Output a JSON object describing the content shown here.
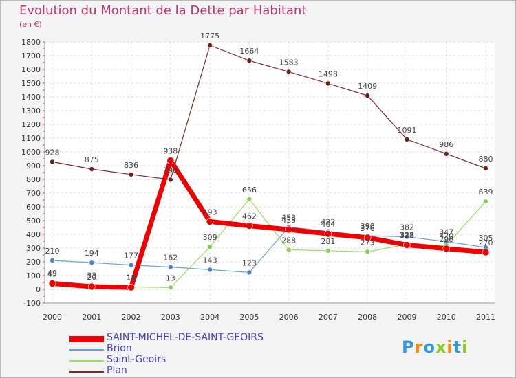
{
  "title": "Evolution du Montant de la Dette par Habitant",
  "unit": "(en €)",
  "logo": "Proxiti",
  "chart_data": {
    "type": "line",
    "title": "Evolution du Montant de la Dette par Habitant",
    "ylabel": "(en €)",
    "xlabel": "",
    "ylim": [
      -100,
      1800
    ],
    "yticks": [
      -100,
      0,
      100,
      200,
      300,
      400,
      500,
      600,
      700,
      800,
      900,
      1000,
      1100,
      1200,
      1300,
      1400,
      1500,
      1600,
      1700,
      1800
    ],
    "x": [
      "2000",
      "2001",
      "2002",
      "2003",
      "2004",
      "2005",
      "2006",
      "2007",
      "2008",
      "2009",
      "2010",
      "2011"
    ],
    "grid": true,
    "legend_position": "bottom-left",
    "series": [
      {
        "name": "Plan",
        "color": "#7a2a2a",
        "marker": "#6b1f1f",
        "width": 1.2,
        "values": [
          928,
          875,
          836,
          798,
          1775,
          1664,
          1583,
          1498,
          1409,
          1091,
          986,
          880
        ],
        "labels": [
          "928",
          "875",
          "836",
          "798",
          "1775",
          "1664",
          "1583",
          "1498",
          "1409",
          "1091",
          "986",
          "880"
        ]
      },
      {
        "name": "Brion",
        "color": "#6f9fcf",
        "marker": "#4f83c8",
        "width": 1.2,
        "values": [
          210,
          194,
          177,
          162,
          143,
          123,
          453,
          422,
          390,
          382,
          347,
          305
        ],
        "labels": [
          "210",
          "194",
          "177",
          "162",
          "143",
          "123",
          "453",
          "422",
          "390",
          "382",
          "347",
          "305"
        ]
      },
      {
        "name": "Saint-Geoirs",
        "color": "#99dd66",
        "marker": "#88d055",
        "width": 1.2,
        "values": [
          49,
          33,
          18,
          13,
          309,
          656,
          288,
          281,
          273,
          328,
          320,
          639
        ],
        "labels": [
          "49",
          "33",
          "18",
          "13",
          "309",
          "656",
          "288",
          "281",
          "273",
          "328",
          "320",
          "639"
        ]
      },
      {
        "name": "SAINT-MICHEL-DE-SAINT-GEOIRS",
        "color": "#ee0000",
        "marker": "#ee0000",
        "width": 7,
        "values": [
          43,
          20,
          14,
          938,
          493,
          462,
          435,
          404,
          376,
          323,
          296,
          270
        ],
        "labels": [
          "43",
          "20",
          "14",
          "938",
          "493",
          "462",
          "435",
          "404",
          "376",
          "323",
          "296",
          "270"
        ]
      }
    ],
    "legend": [
      "SAINT-MICHEL-DE-SAINT-GEOIRS",
      "Brion",
      "Saint-Geoirs",
      "Plan"
    ]
  }
}
